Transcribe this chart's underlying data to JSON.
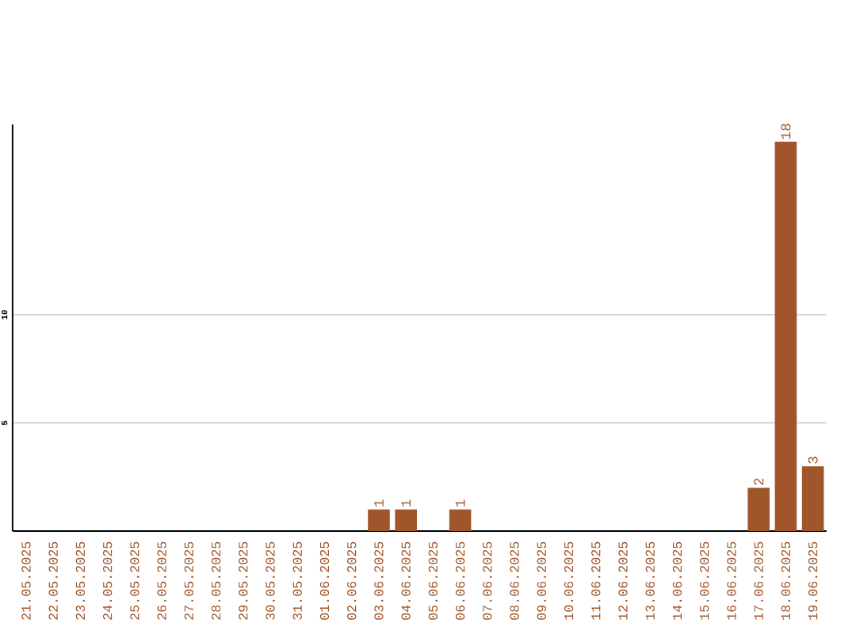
{
  "chart_data": {
    "type": "bar",
    "categories": [
      "21.05.2025",
      "22.05.2025",
      "23.05.2025",
      "24.05.2025",
      "25.05.2025",
      "26.05.2025",
      "27.05.2025",
      "28.05.2025",
      "29.05.2025",
      "30.05.2025",
      "31.05.2025",
      "01.06.2025",
      "02.06.2025",
      "03.06.2025",
      "04.06.2025",
      "05.06.2025",
      "06.06.2025",
      "07.06.2025",
      "08.06.2025",
      "09.06.2025",
      "10.06.2025",
      "11.06.2025",
      "12.06.2025",
      "13.06.2025",
      "14.06.2025",
      "15.06.2025",
      "16.06.2025",
      "17.06.2025",
      "18.06.2025",
      "19.06.2025"
    ],
    "values": [
      0,
      0,
      0,
      0,
      0,
      0,
      0,
      0,
      0,
      0,
      0,
      0,
      0,
      1,
      1,
      0,
      1,
      0,
      0,
      0,
      0,
      0,
      0,
      0,
      0,
      0,
      0,
      2,
      18,
      3
    ],
    "value_labels": [
      null,
      null,
      null,
      null,
      null,
      null,
      null,
      null,
      null,
      null,
      null,
      null,
      null,
      "1",
      "1",
      null,
      "1",
      null,
      null,
      null,
      null,
      null,
      null,
      null,
      null,
      null,
      null,
      "2",
      "18",
      "3"
    ],
    "color": "#a0562a",
    "ylim": [
      0,
      18.8
    ],
    "yticks": [
      5,
      10
    ],
    "grid": "y"
  }
}
